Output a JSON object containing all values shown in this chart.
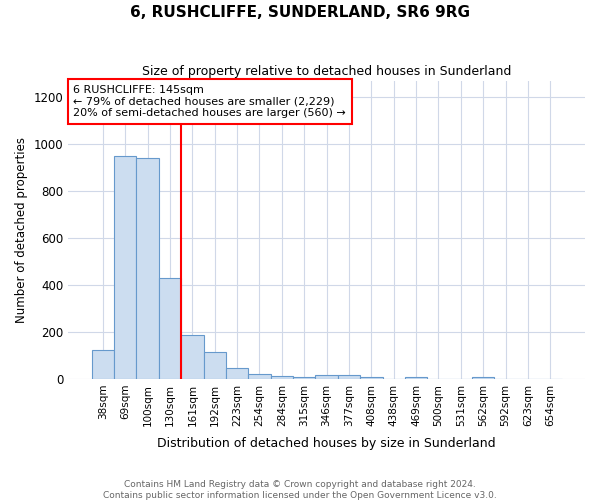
{
  "title": "6, RUSHCLIFFE, SUNDERLAND, SR6 9RG",
  "subtitle": "Size of property relative to detached houses in Sunderland",
  "xlabel": "Distribution of detached houses by size in Sunderland",
  "ylabel": "Number of detached properties",
  "categories": [
    "38sqm",
    "69sqm",
    "100sqm",
    "130sqm",
    "161sqm",
    "192sqm",
    "223sqm",
    "254sqm",
    "284sqm",
    "315sqm",
    "346sqm",
    "377sqm",
    "408sqm",
    "438sqm",
    "469sqm",
    "500sqm",
    "531sqm",
    "562sqm",
    "592sqm",
    "623sqm",
    "654sqm"
  ],
  "values": [
    125,
    950,
    940,
    430,
    185,
    115,
    47,
    20,
    13,
    8,
    15,
    15,
    10,
    0,
    8,
    0,
    0,
    8,
    0,
    0,
    0
  ],
  "bar_color": "#ccddf0",
  "bar_edge_color": "#6699cc",
  "annotation_line1": "6 RUSHCLIFFE: 145sqm",
  "annotation_line2": "← 79% of detached houses are smaller (2,229)",
  "annotation_line3": "20% of semi-detached houses are larger (560) →",
  "ylim": [
    0,
    1270
  ],
  "yticks": [
    0,
    200,
    400,
    600,
    800,
    1000,
    1200
  ],
  "footer1": "Contains HM Land Registry data © Crown copyright and database right 2024.",
  "footer2": "Contains public sector information licensed under the Open Government Licence v3.0.",
  "bg_color": "#ffffff",
  "plot_bg_color": "#ffffff",
  "grid_color": "#d0d8e8"
}
